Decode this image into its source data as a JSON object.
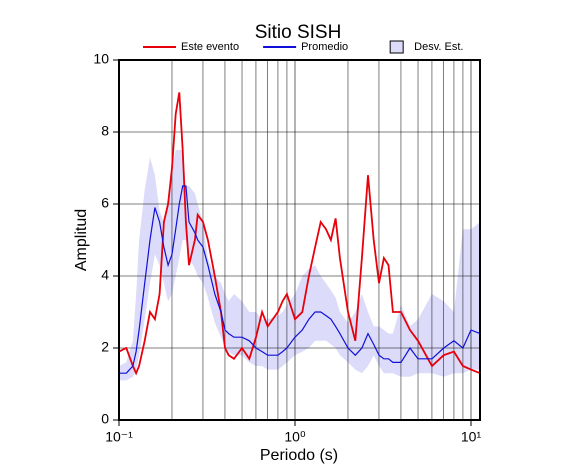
{
  "chart_data": {
    "type": "line",
    "title": "Sitio SISH",
    "xlabel": "Periodo (s)",
    "ylabel": "Amplitud",
    "xscale": "log",
    "xlim": [
      0.1,
      11.25
    ],
    "ylim": [
      0,
      10
    ],
    "xticks": [
      {
        "value": 0.1,
        "label": "10⁻¹"
      },
      {
        "value": 1,
        "label": "10⁰"
      },
      {
        "value": 10,
        "label": "10¹"
      }
    ],
    "xminor": [
      0.2,
      0.3,
      0.4,
      0.5,
      0.6,
      0.7,
      0.8,
      0.9,
      2,
      3,
      4,
      5,
      6,
      7,
      8,
      9
    ],
    "yticks": [
      0,
      2,
      4,
      6,
      8,
      10
    ],
    "grid": true,
    "legend": "top",
    "x": [
      0.1,
      0.11,
      0.12,
      0.125,
      0.13,
      0.14,
      0.15,
      0.16,
      0.17,
      0.18,
      0.19,
      0.2,
      0.21,
      0.22,
      0.23,
      0.24,
      0.25,
      0.27,
      0.28,
      0.3,
      0.32,
      0.35,
      0.38,
      0.4,
      0.42,
      0.45,
      0.5,
      0.55,
      0.6,
      0.65,
      0.7,
      0.8,
      0.85,
      0.9,
      1.0,
      1.1,
      1.2,
      1.3,
      1.4,
      1.5,
      1.6,
      1.7,
      1.8,
      2.0,
      2.2,
      2.4,
      2.6,
      2.8,
      3.0,
      3.2,
      3.4,
      3.6,
      4.0,
      4.5,
      5,
      6,
      7,
      8,
      9,
      10,
      11.25
    ],
    "series": [
      {
        "name": "Este evento",
        "color": "#e8000b",
        "values": [
          1.9,
          2.0,
          1.5,
          1.3,
          1.5,
          2.2,
          3.0,
          2.8,
          3.5,
          5.5,
          6.0,
          7.0,
          8.5,
          9.1,
          7.5,
          5.5,
          4.3,
          5.0,
          5.7,
          5.5,
          5.0,
          4.0,
          3.0,
          2.0,
          1.8,
          1.7,
          2.0,
          1.7,
          2.3,
          3.0,
          2.6,
          3.0,
          3.3,
          3.5,
          2.8,
          3.0,
          4.0,
          4.8,
          5.5,
          5.3,
          5.0,
          5.6,
          4.5,
          3.0,
          2.2,
          4.5,
          6.8,
          5.0,
          3.8,
          4.5,
          4.3,
          3.0,
          3.0,
          2.5,
          2.2,
          1.5,
          1.8,
          1.9,
          1.5,
          1.4,
          1.3
        ]
      },
      {
        "name": "Promedio",
        "color": "#1010d8",
        "values": [
          1.3,
          1.3,
          1.5,
          1.9,
          2.5,
          3.8,
          5.0,
          5.9,
          5.5,
          4.8,
          4.3,
          4.6,
          5.3,
          6.0,
          6.5,
          6.5,
          5.5,
          5.2,
          5.0,
          4.8,
          4.3,
          3.5,
          3.0,
          2.5,
          2.4,
          2.3,
          2.3,
          2.2,
          2.0,
          1.9,
          1.8,
          1.8,
          1.9,
          2.0,
          2.3,
          2.5,
          2.8,
          3.0,
          3.0,
          2.9,
          2.8,
          2.6,
          2.4,
          2.0,
          1.8,
          2.0,
          2.4,
          2.1,
          1.8,
          1.7,
          1.7,
          1.6,
          1.6,
          2.0,
          1.7,
          1.7,
          2.0,
          2.2,
          2.0,
          2.5,
          2.4
        ]
      },
      {
        "name": "Desv. Est.",
        "color": "#dcdcfa",
        "upper": [
          1.5,
          1.6,
          2.2,
          3.5,
          5.0,
          6.4,
          7.3,
          6.8,
          5.8,
          5.5,
          6.2,
          7.0,
          7.5,
          7.5,
          7.5,
          6.5,
          6.5,
          6.3,
          6.0,
          5.5,
          4.5,
          4.0,
          3.8,
          3.5,
          3.3,
          3.5,
          3.3,
          3.0,
          3.0,
          2.8,
          2.8,
          2.9,
          3.0,
          3.2,
          3.5,
          4.0,
          4.2,
          4.3,
          4.0,
          3.8,
          3.6,
          3.4,
          3.0,
          2.7,
          3.0,
          3.5,
          3.0,
          2.6,
          2.6,
          2.5,
          2.4,
          2.4,
          3.2,
          2.6,
          2.8,
          3.5,
          3.3,
          3.0,
          5.3,
          5.3,
          5.5
        ],
        "lower": [
          1.1,
          1.1,
          1.2,
          1.4,
          1.8,
          2.8,
          3.8,
          4.6,
          4.3,
          3.8,
          3.3,
          3.5,
          4.0,
          4.5,
          5.0,
          5.0,
          4.5,
          4.2,
          4.0,
          3.8,
          3.4,
          2.7,
          2.3,
          2.0,
          1.9,
          1.8,
          1.8,
          1.6,
          1.5,
          1.5,
          1.4,
          1.4,
          1.5,
          1.6,
          1.8,
          1.9,
          2.0,
          2.2,
          2.2,
          2.2,
          2.1,
          2.0,
          1.8,
          1.6,
          1.4,
          1.3,
          1.5,
          1.8,
          1.5,
          1.3,
          1.3,
          1.3,
          1.2,
          1.2,
          1.3,
          1.3,
          1.2,
          1.3,
          1.3,
          1.4,
          1.4
        ]
      }
    ]
  }
}
